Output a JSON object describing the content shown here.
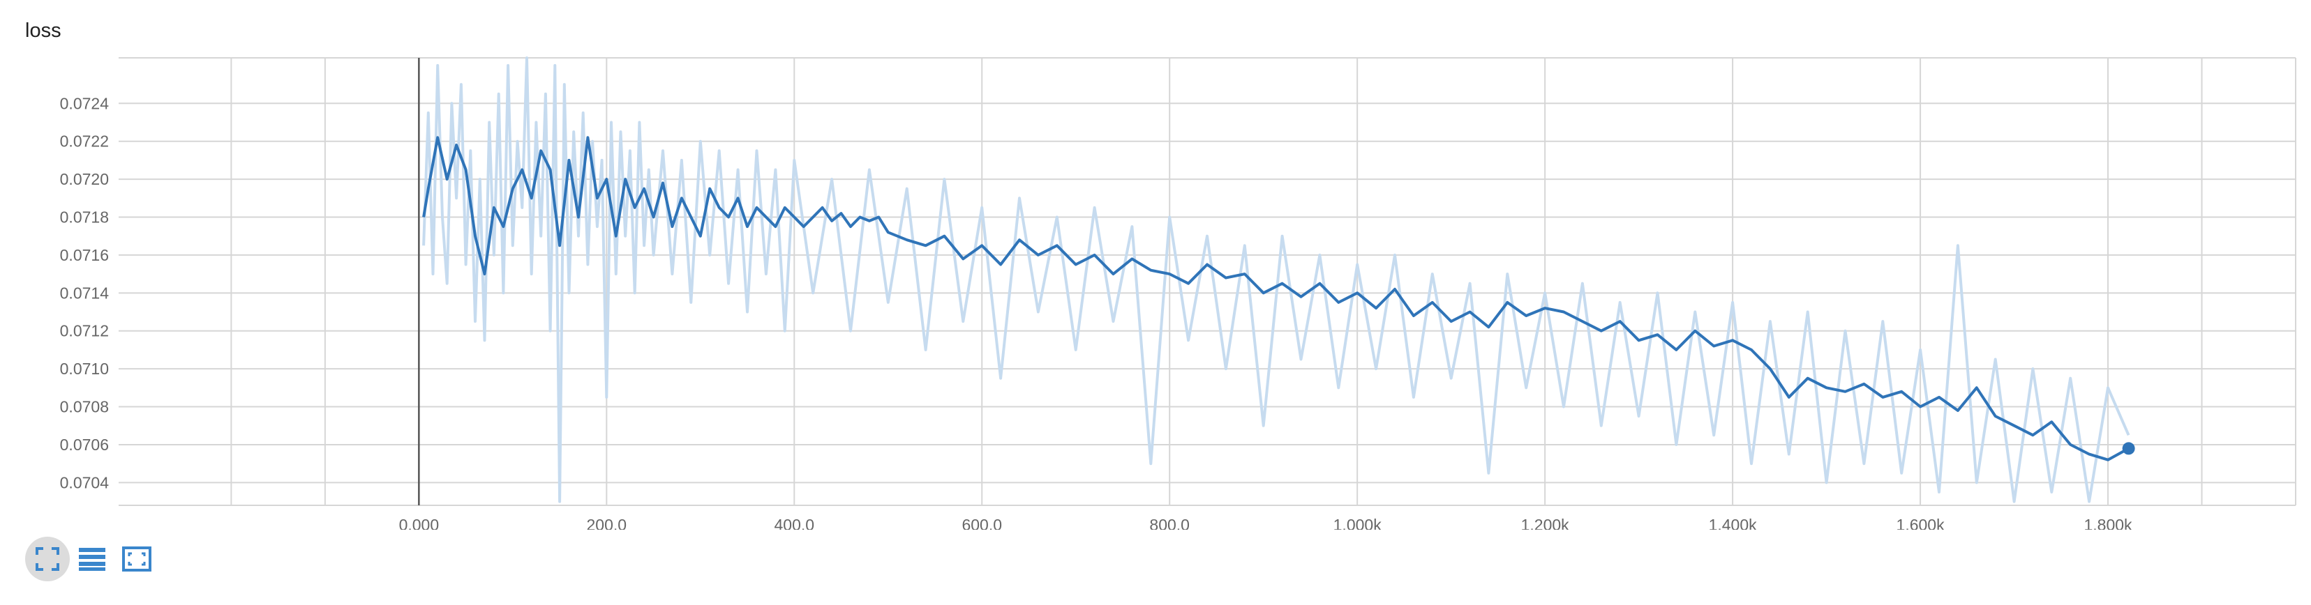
{
  "title": "loss",
  "chart_data": {
    "type": "line",
    "title": "loss",
    "xlabel": "",
    "ylabel": "",
    "xlim": [
      -320,
      2000
    ],
    "ylim": [
      0.07028,
      0.07264
    ],
    "x_ticks": [
      0,
      200,
      400,
      600,
      800,
      1000,
      1200,
      1400,
      1600,
      1800
    ],
    "x_tick_labels": [
      "0.000",
      "200.0",
      "400.0",
      "600.0",
      "800.0",
      "1.000k",
      "1.200k",
      "1.400k",
      "1.600k",
      "1.800k"
    ],
    "y_ticks": [
      0.0704,
      0.0706,
      0.0708,
      0.071,
      0.0712,
      0.0714,
      0.0716,
      0.0718,
      0.072,
      0.0722,
      0.0724
    ],
    "y_tick_labels": [
      "0.0704",
      "0.0706",
      "0.0708",
      "0.0710",
      "0.0712",
      "0.0714",
      "0.0716",
      "0.0718",
      "0.0720",
      "0.0722",
      "0.0724"
    ],
    "grid": true,
    "series": [
      {
        "role": "smoothed",
        "color": "#2f74b8",
        "x": [
          5,
          10,
          20,
          30,
          40,
          50,
          60,
          70,
          80,
          90,
          100,
          110,
          120,
          130,
          140,
          150,
          160,
          170,
          180,
          190,
          200,
          210,
          220,
          230,
          240,
          250,
          260,
          270,
          280,
          290,
          300,
          310,
          320,
          330,
          340,
          350,
          360,
          370,
          380,
          390,
          400,
          410,
          420,
          430,
          440,
          450,
          460,
          470,
          480,
          490,
          500,
          520,
          540,
          560,
          580,
          600,
          620,
          640,
          660,
          680,
          700,
          720,
          740,
          760,
          780,
          800,
          820,
          840,
          860,
          880,
          900,
          920,
          940,
          960,
          980,
          1000,
          1020,
          1040,
          1060,
          1080,
          1100,
          1120,
          1140,
          1160,
          1180,
          1200,
          1220,
          1240,
          1260,
          1280,
          1300,
          1320,
          1340,
          1360,
          1380,
          1400,
          1420,
          1440,
          1460,
          1480,
          1500,
          1520,
          1540,
          1560,
          1580,
          1600,
          1620,
          1640,
          1660,
          1680,
          1700,
          1720,
          1740,
          1760,
          1780,
          1800,
          1822
        ],
        "y": [
          0.0718,
          0.07195,
          0.07222,
          0.072,
          0.07218,
          0.07205,
          0.0717,
          0.0715,
          0.07185,
          0.07175,
          0.07195,
          0.07205,
          0.0719,
          0.07215,
          0.07205,
          0.07165,
          0.0721,
          0.0718,
          0.07222,
          0.0719,
          0.072,
          0.0717,
          0.072,
          0.07185,
          0.07195,
          0.0718,
          0.07198,
          0.07175,
          0.0719,
          0.0718,
          0.0717,
          0.07195,
          0.07185,
          0.0718,
          0.0719,
          0.07175,
          0.07185,
          0.0718,
          0.07175,
          0.07185,
          0.0718,
          0.07175,
          0.0718,
          0.07185,
          0.07178,
          0.07182,
          0.07175,
          0.0718,
          0.07178,
          0.0718,
          0.07172,
          0.07168,
          0.07165,
          0.0717,
          0.07158,
          0.07165,
          0.07155,
          0.07168,
          0.0716,
          0.07165,
          0.07155,
          0.0716,
          0.0715,
          0.07158,
          0.07152,
          0.0715,
          0.07145,
          0.07155,
          0.07148,
          0.0715,
          0.0714,
          0.07145,
          0.07138,
          0.07145,
          0.07135,
          0.0714,
          0.07132,
          0.07142,
          0.07128,
          0.07135,
          0.07125,
          0.0713,
          0.07122,
          0.07135,
          0.07128,
          0.07132,
          0.0713,
          0.07125,
          0.0712,
          0.07125,
          0.07115,
          0.07118,
          0.0711,
          0.0712,
          0.07112,
          0.07115,
          0.0711,
          0.071,
          0.07085,
          0.07095,
          0.0709,
          0.07088,
          0.07092,
          0.07085,
          0.07088,
          0.0708,
          0.07085,
          0.07078,
          0.0709,
          0.07075,
          0.0707,
          0.07065,
          0.07072,
          0.0706,
          0.07055,
          0.07052,
          0.07058
        ]
      },
      {
        "role": "raw",
        "color": "#c6dbef",
        "x": [
          5,
          10,
          15,
          20,
          25,
          30,
          35,
          40,
          45,
          50,
          55,
          60,
          65,
          70,
          75,
          80,
          85,
          90,
          95,
          100,
          105,
          110,
          115,
          120,
          125,
          130,
          135,
          140,
          145,
          150,
          155,
          160,
          165,
          170,
          175,
          180,
          185,
          190,
          195,
          200,
          205,
          210,
          215,
          220,
          225,
          230,
          235,
          240,
          245,
          250,
          260,
          270,
          280,
          290,
          300,
          310,
          320,
          330,
          340,
          350,
          360,
          370,
          380,
          390,
          400,
          420,
          440,
          460,
          480,
          500,
          520,
          540,
          560,
          580,
          600,
          620,
          640,
          660,
          680,
          700,
          720,
          740,
          760,
          780,
          800,
          820,
          840,
          860,
          880,
          900,
          920,
          940,
          960,
          980,
          1000,
          1020,
          1040,
          1060,
          1080,
          1100,
          1120,
          1140,
          1160,
          1180,
          1200,
          1220,
          1240,
          1260,
          1280,
          1300,
          1320,
          1340,
          1360,
          1380,
          1400,
          1420,
          1440,
          1460,
          1480,
          1500,
          1520,
          1540,
          1560,
          1580,
          1600,
          1620,
          1640,
          1660,
          1680,
          1700,
          1720,
          1740,
          1760,
          1780,
          1800,
          1822
        ],
        "y": [
          0.07165,
          0.07235,
          0.0715,
          0.0726,
          0.0718,
          0.07145,
          0.0724,
          0.0719,
          0.0725,
          0.07155,
          0.07215,
          0.07125,
          0.072,
          0.07115,
          0.0723,
          0.0716,
          0.07245,
          0.0714,
          0.0726,
          0.07165,
          0.0722,
          0.07185,
          0.07265,
          0.0715,
          0.0723,
          0.0717,
          0.07245,
          0.0712,
          0.0726,
          0.0703,
          0.0725,
          0.0714,
          0.07225,
          0.0717,
          0.07235,
          0.07155,
          0.0722,
          0.07175,
          0.0721,
          0.07085,
          0.0723,
          0.0715,
          0.07225,
          0.0717,
          0.07215,
          0.0714,
          0.0723,
          0.07165,
          0.07205,
          0.0716,
          0.07215,
          0.0715,
          0.0721,
          0.07135,
          0.0722,
          0.0716,
          0.07215,
          0.07145,
          0.07205,
          0.0713,
          0.07215,
          0.0715,
          0.07205,
          0.0712,
          0.0721,
          0.0714,
          0.072,
          0.0712,
          0.07205,
          0.07135,
          0.07195,
          0.0711,
          0.072,
          0.07125,
          0.07185,
          0.07095,
          0.0719,
          0.0713,
          0.0718,
          0.0711,
          0.07185,
          0.07125,
          0.07175,
          0.0705,
          0.0718,
          0.07115,
          0.0717,
          0.071,
          0.07165,
          0.0707,
          0.0717,
          0.07105,
          0.0716,
          0.0709,
          0.07155,
          0.071,
          0.0716,
          0.07085,
          0.0715,
          0.07095,
          0.07145,
          0.07045,
          0.0715,
          0.0709,
          0.0714,
          0.0708,
          0.07145,
          0.0707,
          0.07135,
          0.07075,
          0.0714,
          0.0706,
          0.0713,
          0.07065,
          0.07135,
          0.0705,
          0.07125,
          0.07055,
          0.0713,
          0.0704,
          0.0712,
          0.0705,
          0.07125,
          0.07045,
          0.0711,
          0.07035,
          0.07165,
          0.0704,
          0.07105,
          0.0703,
          0.071,
          0.07035,
          0.07095,
          0.0703,
          0.0709,
          0.07065
        ]
      }
    ]
  },
  "toolbar": {
    "expand_icon": "expand-icon",
    "list_icon": "list-icon",
    "fit_icon": "fit-domain-icon"
  }
}
